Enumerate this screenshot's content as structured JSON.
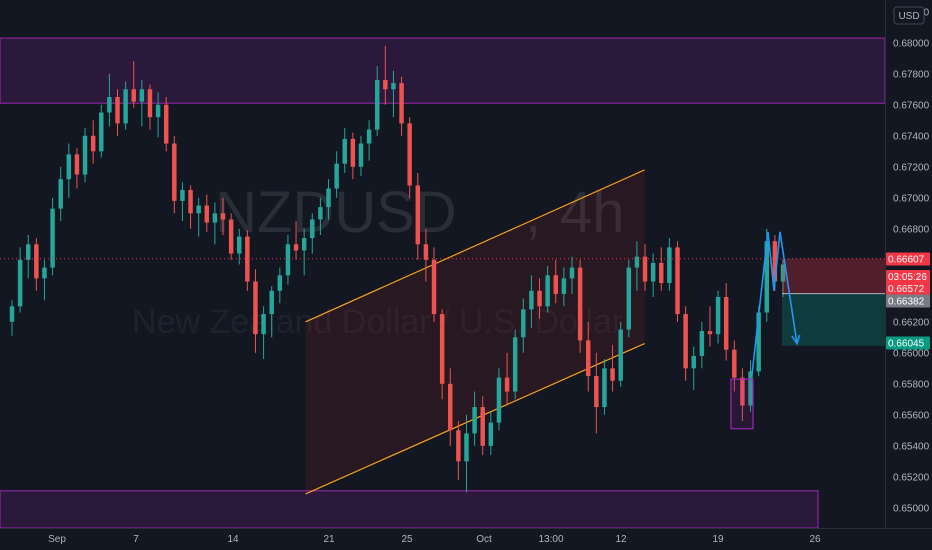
{
  "chart_data": {
    "type": "candlestick",
    "symbol": "NZDUSD",
    "interval": "4h",
    "description": "New Zealand Dollar / U.S. Dollar",
    "currency": "USD",
    "x_ticks": [
      "Sep",
      "7",
      "14",
      "21",
      "25",
      "Oct",
      "13:00",
      "12",
      "19",
      "26"
    ],
    "y_ticks": [
      "0.68200",
      "0.68000",
      "0.67800",
      "0.67600",
      "0.67400",
      "0.67200",
      "0.67000",
      "0.66800",
      "0.66600",
      "0.66400",
      "0.66200",
      "0.66000",
      "0.65800",
      "0.65600",
      "0.65400",
      "0.65200",
      "0.65000"
    ],
    "ylim": [
      0.6487,
      0.6825
    ],
    "price_labels": {
      "upper": {
        "value": "0.66607",
        "color": "#f23645"
      },
      "current": {
        "value": "0.66572",
        "countdown": "03:05:26",
        "color": "#f23645"
      },
      "middle": {
        "value": "0.66382",
        "color": "#787b86"
      },
      "target": {
        "value": "0.66045",
        "color": "#089981"
      }
    },
    "zones": [
      {
        "name": "resistance",
        "from": 0.6761,
        "to": 0.6803,
        "color": "#9c27b0"
      },
      {
        "name": "support",
        "from": 0.6487,
        "to": 0.6511,
        "color": "#9c27b0"
      }
    ],
    "channel": {
      "lower": [
        {
          "date": "2020-09-23",
          "value": 0.6509
        },
        {
          "date": "2020-10-23",
          "value": 0.6606
        }
      ],
      "upper": [
        {
          "date": "2020-09-23",
          "value": 0.662
        },
        {
          "date": "2020-10-23",
          "value": 0.6718
        }
      ],
      "color": "#f7a21b"
    },
    "projection": [
      {
        "date": "2020-10-21",
        "value": 0.6586
      },
      {
        "date": "2020-10-22",
        "value": 0.6678
      },
      {
        "date": "2020-10-22",
        "value": 0.664
      },
      {
        "date": "2020-10-22",
        "value": 0.6678
      },
      {
        "date": "2020-10-23",
        "value": 0.6606
      }
    ],
    "candles": [
      [
        0.662,
        0.6634,
        0.6611,
        0.663
      ],
      [
        0.663,
        0.6668,
        0.6626,
        0.666
      ],
      [
        0.666,
        0.6676,
        0.6648,
        0.667
      ],
      [
        0.667,
        0.6674,
        0.664,
        0.6648
      ],
      [
        0.6648,
        0.666,
        0.6634,
        0.6655
      ],
      [
        0.6655,
        0.67,
        0.665,
        0.6693
      ],
      [
        0.6693,
        0.672,
        0.6685,
        0.6712
      ],
      [
        0.6712,
        0.6735,
        0.67,
        0.6728
      ],
      [
        0.6728,
        0.6732,
        0.6706,
        0.6715
      ],
      [
        0.6715,
        0.6745,
        0.671,
        0.674
      ],
      [
        0.674,
        0.675,
        0.6722,
        0.673
      ],
      [
        0.673,
        0.676,
        0.6726,
        0.6755
      ],
      [
        0.6755,
        0.678,
        0.6746,
        0.6765
      ],
      [
        0.6765,
        0.677,
        0.674,
        0.6748
      ],
      [
        0.6748,
        0.6775,
        0.6744,
        0.677
      ],
      [
        0.677,
        0.6788,
        0.6758,
        0.6762
      ],
      [
        0.6762,
        0.6776,
        0.6746,
        0.677
      ],
      [
        0.677,
        0.6773,
        0.6744,
        0.6752
      ],
      [
        0.6752,
        0.6768,
        0.6739,
        0.676
      ],
      [
        0.676,
        0.6765,
        0.673,
        0.6735
      ],
      [
        0.6735,
        0.674,
        0.669,
        0.6698
      ],
      [
        0.6698,
        0.671,
        0.6685,
        0.6705
      ],
      [
        0.6705,
        0.6708,
        0.668,
        0.669
      ],
      [
        0.669,
        0.67,
        0.6675,
        0.6695
      ],
      [
        0.6695,
        0.6702,
        0.6678,
        0.6684
      ],
      [
        0.6684,
        0.6697,
        0.667,
        0.669
      ],
      [
        0.669,
        0.67,
        0.6676,
        0.6686
      ],
      [
        0.6686,
        0.669,
        0.666,
        0.6664
      ],
      [
        0.6664,
        0.668,
        0.6657,
        0.6675
      ],
      [
        0.6675,
        0.6679,
        0.664,
        0.6646
      ],
      [
        0.6646,
        0.6654,
        0.66,
        0.6612
      ],
      [
        0.6612,
        0.663,
        0.6596,
        0.6625
      ],
      [
        0.6625,
        0.6643,
        0.661,
        0.664
      ],
      [
        0.664,
        0.6655,
        0.6632,
        0.665
      ],
      [
        0.665,
        0.6676,
        0.6644,
        0.667
      ],
      [
        0.667,
        0.6685,
        0.666,
        0.6666
      ],
      [
        0.6666,
        0.668,
        0.665,
        0.6674
      ],
      [
        0.6674,
        0.669,
        0.6664,
        0.6686
      ],
      [
        0.6686,
        0.67,
        0.6676,
        0.6694
      ],
      [
        0.6694,
        0.6712,
        0.6686,
        0.6706
      ],
      [
        0.6706,
        0.673,
        0.67,
        0.6722
      ],
      [
        0.6722,
        0.6745,
        0.6716,
        0.6738
      ],
      [
        0.6738,
        0.6742,
        0.6712,
        0.672
      ],
      [
        0.672,
        0.674,
        0.6714,
        0.6735
      ],
      [
        0.6735,
        0.675,
        0.6724,
        0.6744
      ],
      [
        0.6744,
        0.6785,
        0.674,
        0.6776
      ],
      [
        0.6776,
        0.6798,
        0.676,
        0.677
      ],
      [
        0.677,
        0.6782,
        0.6752,
        0.6774
      ],
      [
        0.6774,
        0.6778,
        0.674,
        0.6748
      ],
      [
        0.6748,
        0.6752,
        0.67,
        0.6708
      ],
      [
        0.6708,
        0.6716,
        0.666,
        0.667
      ],
      [
        0.667,
        0.668,
        0.6646,
        0.666
      ],
      [
        0.666,
        0.6668,
        0.662,
        0.6625
      ],
      [
        0.6625,
        0.6628,
        0.657,
        0.658
      ],
      [
        0.658,
        0.659,
        0.654,
        0.655
      ],
      [
        0.655,
        0.6556,
        0.6518,
        0.653
      ],
      [
        0.653,
        0.656,
        0.651,
        0.6548
      ],
      [
        0.6548,
        0.6575,
        0.654,
        0.6565
      ],
      [
        0.6565,
        0.6572,
        0.6534,
        0.654
      ],
      [
        0.654,
        0.6562,
        0.6534,
        0.6555
      ],
      [
        0.6555,
        0.659,
        0.655,
        0.6584
      ],
      [
        0.6584,
        0.66,
        0.6566,
        0.6575
      ],
      [
        0.6575,
        0.6615,
        0.657,
        0.661
      ],
      [
        0.661,
        0.6635,
        0.66,
        0.6628
      ],
      [
        0.6628,
        0.665,
        0.6616,
        0.664
      ],
      [
        0.664,
        0.6648,
        0.6622,
        0.663
      ],
      [
        0.663,
        0.6656,
        0.6626,
        0.665
      ],
      [
        0.665,
        0.666,
        0.6632,
        0.6638
      ],
      [
        0.6638,
        0.6655,
        0.663,
        0.6648
      ],
      [
        0.6648,
        0.6662,
        0.6638,
        0.6655
      ],
      [
        0.6655,
        0.666,
        0.66,
        0.6608
      ],
      [
        0.6608,
        0.662,
        0.6575,
        0.6585
      ],
      [
        0.6585,
        0.66,
        0.6548,
        0.6565
      ],
      [
        0.6565,
        0.6596,
        0.656,
        0.659
      ],
      [
        0.659,
        0.6605,
        0.6575,
        0.6582
      ],
      [
        0.6582,
        0.662,
        0.6578,
        0.6615
      ],
      [
        0.6615,
        0.666,
        0.661,
        0.6655
      ],
      [
        0.6655,
        0.6672,
        0.664,
        0.6662
      ],
      [
        0.6662,
        0.667,
        0.664,
        0.6646
      ],
      [
        0.6646,
        0.6664,
        0.6636,
        0.6658
      ],
      [
        0.6658,
        0.6668,
        0.664,
        0.6645
      ],
      [
        0.6645,
        0.6674,
        0.664,
        0.6668
      ],
      [
        0.6668,
        0.6672,
        0.662,
        0.6625
      ],
      [
        0.6625,
        0.663,
        0.6582,
        0.659
      ],
      [
        0.659,
        0.6604,
        0.6576,
        0.6598
      ],
      [
        0.6598,
        0.662,
        0.659,
        0.6614
      ],
      [
        0.6614,
        0.663,
        0.6604,
        0.6612
      ],
      [
        0.6612,
        0.664,
        0.6606,
        0.6636
      ],
      [
        0.6636,
        0.6645,
        0.6595,
        0.6602
      ],
      [
        0.6602,
        0.6608,
        0.6575,
        0.6584
      ],
      [
        0.6584,
        0.659,
        0.6556,
        0.6566
      ],
      [
        0.6566,
        0.6595,
        0.6562,
        0.6588
      ],
      [
        0.6588,
        0.663,
        0.6585,
        0.6626
      ],
      [
        0.6626,
        0.668,
        0.662,
        0.6672
      ],
      [
        0.6672,
        0.6676,
        0.664,
        0.6646
      ],
      [
        0.6646,
        0.666,
        0.6636,
        0.6657
      ]
    ]
  }
}
